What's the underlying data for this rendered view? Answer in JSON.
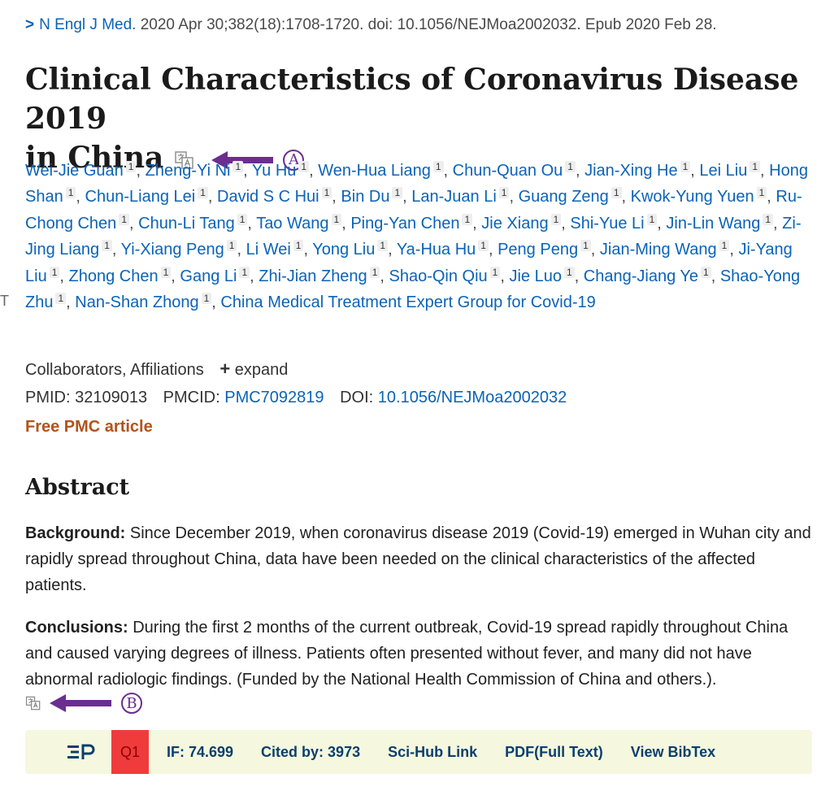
{
  "citation": {
    "journal": "N Engl J Med.",
    "details": "2020 Apr 30;382(18):1708-1720. doi: 10.1056/NEJMoa2002032. Epub 2020 Feb 28."
  },
  "title_line1": "Clinical Characteristics of Coronavirus Disease 2019",
  "title_line2": "in China",
  "annotations": {
    "a": "A",
    "b": "B"
  },
  "edge_text": "T",
  "authors": [
    "Wei-Jie Guan",
    "Zheng-Yi Ni",
    "Yu Hu",
    "Wen-Hua Liang",
    "Chun-Quan Ou",
    "Jian-Xing He",
    "Lei Liu",
    "Hong Shan",
    "Chun-Liang Lei",
    "David S C Hui",
    "Bin Du",
    "Lan-Juan Li",
    "Guang Zeng",
    "Kwok-Yung Yuen",
    "Ru-Chong Chen",
    "Chun-Li Tang",
    "Tao Wang",
    "Ping-Yan Chen",
    "Jie Xiang",
    "Shi-Yue Li",
    "Jin-Lin Wang",
    "Zi-Jing Liang",
    "Yi-Xiang Peng",
    "Li Wei",
    "Yong Liu",
    "Ya-Hua Hu",
    "Peng Peng",
    "Jian-Ming Wang",
    "Ji-Yang Liu",
    "Zhong Chen",
    "Gang Li",
    "Zhi-Jian Zheng",
    "Shao-Qin Qiu",
    "Jie Luo",
    "Chang-Jiang Ye",
    "Shao-Yong Zhu",
    "Nan-Shan Zhong"
  ],
  "author_sup": "1",
  "group_author": "China Medical Treatment Expert Group for Covid-19",
  "collaborators": {
    "label": "Collaborators, Affiliations",
    "expand": "expand"
  },
  "ids": {
    "pmid_label": "PMID:",
    "pmid": "32109013",
    "pmcid_label": "PMCID:",
    "pmcid": "PMC7092819",
    "doi_label": "DOI:",
    "doi": "10.1056/NEJMoa2002032"
  },
  "free_pmc": "Free PMC article",
  "abstract": {
    "heading": "Abstract",
    "background_label": "Background:",
    "background_text": " Since December 2019, when coronavirus disease 2019 (Covid-19) emerged in Wuhan city and rapidly spread throughout China, data have been needed on the clinical characteristics of the affected patients.",
    "conclusions_label": "Conclusions:",
    "conclusions_text": " During the first 2 months of the current outbreak, Covid-19 spread rapidly throughout China and caused varying degrees of illness. Patients often presented without fever, and many did not have abnormal radiologic findings. (Funded by the National Health Commission of China and others.)."
  },
  "toolbar": {
    "quartile": "Q1",
    "impact_factor": "IF: 74.699",
    "cited_by": "Cited by: 3973",
    "scihub": "Sci-Hub Link",
    "pdf": "PDF(Full Text)",
    "bibtex": "View BibTex"
  },
  "colors": {
    "link": "#0b63b8",
    "accent": "#6c2d91",
    "free": "#b3531b",
    "toolbar_bg": "#f5f8de",
    "q1": "#ef3b3b"
  }
}
